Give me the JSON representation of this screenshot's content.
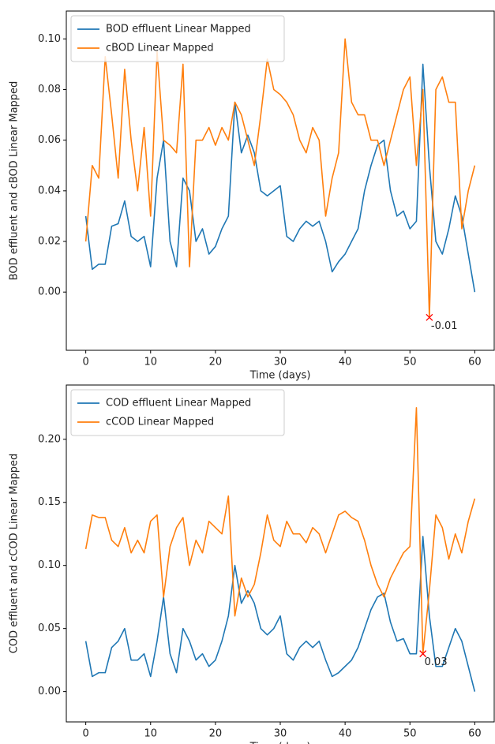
{
  "chart_data": [
    {
      "type": "line",
      "ylabel": "BOD effluent and cBOD Linear Mapped",
      "xlabel": "Time (days)",
      "x": [
        0,
        1,
        2,
        3,
        4,
        5,
        6,
        7,
        8,
        9,
        10,
        11,
        12,
        13,
        14,
        15,
        16,
        17,
        18,
        19,
        20,
        21,
        22,
        23,
        24,
        25,
        26,
        27,
        28,
        29,
        30,
        31,
        32,
        33,
        34,
        35,
        36,
        37,
        38,
        39,
        40,
        41,
        42,
        43,
        44,
        45,
        46,
        47,
        48,
        49,
        50,
        51,
        52,
        53,
        54,
        55,
        56,
        57,
        58,
        59,
        60
      ],
      "series": [
        {
          "name": "BOD effluent Linear Mapped",
          "color": "#1f77b4",
          "values": [
            0.03,
            0.009,
            0.011,
            0.011,
            0.026,
            0.027,
            0.036,
            0.022,
            0.02,
            0.022,
            0.01,
            0.045,
            0.06,
            0.02,
            0.01,
            0.045,
            0.04,
            0.02,
            0.025,
            0.015,
            0.018,
            0.025,
            0.03,
            0.075,
            0.055,
            0.062,
            0.055,
            0.04,
            0.038,
            0.04,
            0.042,
            0.022,
            0.02,
            0.025,
            0.028,
            0.026,
            0.028,
            0.02,
            0.008,
            0.012,
            0.015,
            0.02,
            0.025,
            0.04,
            0.05,
            0.058,
            0.06,
            0.04,
            0.03,
            0.032,
            0.025,
            0.028,
            0.09,
            0.05,
            0.02,
            0.015,
            0.025,
            0.038,
            0.03,
            0.015,
            0.0
          ]
        },
        {
          "name": "cBOD Linear Mapped",
          "color": "#ff7f0e",
          "values": [
            0.02,
            0.05,
            0.045,
            0.093,
            0.07,
            0.045,
            0.088,
            0.06,
            0.04,
            0.065,
            0.03,
            0.095,
            0.06,
            0.058,
            0.055,
            0.09,
            0.01,
            0.06,
            0.06,
            0.065,
            0.058,
            0.065,
            0.06,
            0.075,
            0.07,
            0.06,
            0.05,
            0.07,
            0.092,
            0.08,
            0.078,
            0.075,
            0.07,
            0.06,
            0.055,
            0.065,
            0.06,
            0.03,
            0.045,
            0.055,
            0.1,
            0.075,
            0.07,
            0.07,
            0.06,
            0.06,
            0.05,
            0.06,
            0.07,
            0.08,
            0.085,
            0.05,
            0.08,
            -0.01,
            0.08,
            0.085,
            0.075,
            0.075,
            0.025,
            0.04,
            0.05
          ]
        }
      ],
      "marker": {
        "x": 53,
        "y": -0.01,
        "color": "#ff0000"
      },
      "xlim": [
        -3,
        63
      ],
      "xticks": [
        0,
        10,
        20,
        30,
        40,
        50,
        60
      ],
      "ylim": [
        -0.023,
        0.111
      ],
      "yticks": [
        {
          "value": 0,
          "label": "0.00"
        },
        {
          "value": 0.02,
          "label": "0.02"
        },
        {
          "value": 0.04,
          "label": "0.04"
        },
        {
          "value": 0.06,
          "label": "0.06"
        },
        {
          "value": 0.08,
          "label": "0.08"
        },
        {
          "value": 0.1,
          "label": "0.10"
        }
      ],
      "legend": "upper left"
    },
    {
      "type": "line",
      "ylabel": "COD effluent and cCOD Linear Mapped",
      "xlabel": "Time (days)",
      "x": [
        0,
        1,
        2,
        3,
        4,
        5,
        6,
        7,
        8,
        9,
        10,
        11,
        12,
        13,
        14,
        15,
        16,
        17,
        18,
        19,
        20,
        21,
        22,
        23,
        24,
        25,
        26,
        27,
        28,
        29,
        30,
        31,
        32,
        33,
        34,
        35,
        36,
        37,
        38,
        39,
        40,
        41,
        42,
        43,
        44,
        45,
        46,
        47,
        48,
        49,
        50,
        51,
        52,
        53,
        54,
        55,
        56,
        57,
        58,
        59,
        60
      ],
      "series": [
        {
          "name": "COD effluent Linear Mapped",
          "color": "#1f77b4",
          "values": [
            0.04,
            0.012,
            0.015,
            0.015,
            0.035,
            0.04,
            0.05,
            0.025,
            0.025,
            0.03,
            0.012,
            0.04,
            0.075,
            0.03,
            0.015,
            0.05,
            0.04,
            0.025,
            0.03,
            0.02,
            0.025,
            0.04,
            0.06,
            0.1,
            0.07,
            0.08,
            0.07,
            0.05,
            0.045,
            0.05,
            0.06,
            0.03,
            0.025,
            0.035,
            0.04,
            0.035,
            0.04,
            0.025,
            0.012,
            0.015,
            0.02,
            0.025,
            0.035,
            0.05,
            0.065,
            0.075,
            0.078,
            0.055,
            0.04,
            0.042,
            0.03,
            0.03,
            0.123,
            0.06,
            0.02,
            0.02,
            0.035,
            0.05,
            0.04,
            0.02,
            0.0
          ]
        },
        {
          "name": "cCOD Linear Mapped",
          "color": "#ff7f0e",
          "values": [
            0.113,
            0.14,
            0.138,
            0.138,
            0.12,
            0.115,
            0.13,
            0.11,
            0.12,
            0.11,
            0.135,
            0.14,
            0.075,
            0.115,
            0.13,
            0.138,
            0.1,
            0.12,
            0.11,
            0.135,
            0.13,
            0.125,
            0.155,
            0.06,
            0.09,
            0.075,
            0.085,
            0.11,
            0.14,
            0.12,
            0.115,
            0.135,
            0.125,
            0.125,
            0.118,
            0.13,
            0.125,
            0.11,
            0.125,
            0.14,
            0.143,
            0.138,
            0.135,
            0.12,
            0.1,
            0.085,
            0.075,
            0.09,
            0.1,
            0.11,
            0.115,
            0.225,
            0.03,
            0.08,
            0.14,
            0.13,
            0.105,
            0.125,
            0.11,
            0.135,
            0.153
          ]
        }
      ],
      "marker": {
        "x": 52,
        "y": 0.03,
        "color": "#ff0000"
      },
      "xlim": [
        -3,
        63
      ],
      "xticks": [
        0,
        10,
        20,
        30,
        40,
        50,
        60
      ],
      "ylim": [
        -0.024,
        0.243
      ],
      "yticks": [
        {
          "value": 0,
          "label": "0.00"
        },
        {
          "value": 0.05,
          "label": "0.05"
        },
        {
          "value": 0.1,
          "label": "0.10"
        },
        {
          "value": 0.15,
          "label": "0.15"
        },
        {
          "value": 0.2,
          "label": "0.20"
        }
      ],
      "legend": "upper left"
    }
  ]
}
